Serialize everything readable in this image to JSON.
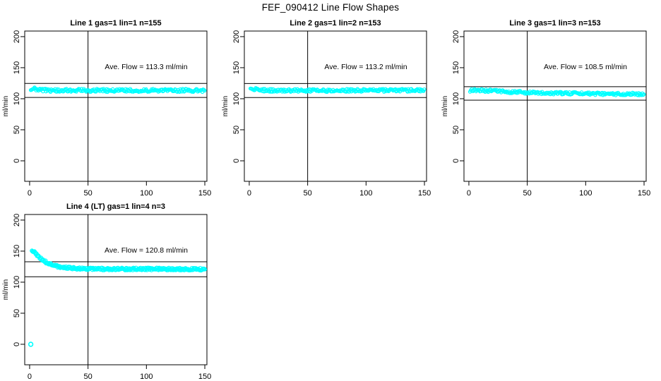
{
  "title": "FEF_090412  Line Flow Shapes",
  "colors": {
    "point": "#00FFFF",
    "axis": "#000000",
    "background": "#FFFFFF"
  },
  "chart_data": [
    {
      "type": "scatter",
      "title": "Line 1 gas=1 lin=1 n=155",
      "annotation": "Ave. Flow =  113.3  ml/min",
      "ave_flow": 113.3,
      "n": 155,
      "ylabel": "ml/min",
      "xlabel": "",
      "xlim": [
        -4.2,
        151.8
      ],
      "ylim": [
        -33,
        209
      ],
      "xticks": [
        0,
        50,
        100,
        150
      ],
      "yticks": [
        0,
        50,
        100,
        150,
        200
      ],
      "vline_x": 50,
      "hlines": [
        124.6,
        102.0
      ],
      "annotation_xy": [
        100,
        150
      ],
      "x_range": [
        1,
        150
      ],
      "x_step": 0.65,
      "band_halfwidth": 2.6,
      "point_radius": 2.1,
      "shape_points": [
        [
          1,
          116
        ],
        [
          2,
          117
        ],
        [
          3,
          116.5
        ],
        [
          5,
          115.5
        ],
        [
          8,
          114.5
        ],
        [
          12,
          113.8
        ],
        [
          20,
          113.4
        ],
        [
          40,
          113.3
        ],
        [
          80,
          113.4
        ],
        [
          150,
          113.4
        ]
      ],
      "outliers": []
    },
    {
      "type": "scatter",
      "title": "Line 2 gas=1 lin=2 n=153",
      "annotation": "Ave. Flow =  113.2  ml/min",
      "ave_flow": 113.2,
      "n": 153,
      "ylabel": "ml/min",
      "xlabel": "",
      "xlim": [
        -4.2,
        151.8
      ],
      "ylim": [
        -33,
        209
      ],
      "xticks": [
        0,
        50,
        100,
        150
      ],
      "yticks": [
        0,
        50,
        100,
        150,
        200
      ],
      "vline_x": 50,
      "hlines": [
        124.5,
        101.9
      ],
      "annotation_xy": [
        100,
        150
      ],
      "x_range": [
        1,
        150
      ],
      "x_step": 0.65,
      "band_halfwidth": 2.4,
      "point_radius": 2.1,
      "shape_points": [
        [
          1,
          116.5
        ],
        [
          2,
          117
        ],
        [
          4,
          115.8
        ],
        [
          7,
          114.5
        ],
        [
          12,
          113.6
        ],
        [
          20,
          113.2
        ],
        [
          40,
          113.2
        ],
        [
          80,
          113.4
        ],
        [
          150,
          113.5
        ]
      ],
      "outliers": []
    },
    {
      "type": "scatter",
      "title": "Line 3 gas=1 lin=3 n=153",
      "annotation": "Ave. Flow =  108.5  ml/min",
      "ave_flow": 108.5,
      "n": 153,
      "ylabel": "ml/min",
      "xlabel": "",
      "xlim": [
        -4.2,
        151.8
      ],
      "ylim": [
        -33,
        209
      ],
      "xticks": [
        0,
        50,
        100,
        150
      ],
      "yticks": [
        0,
        50,
        100,
        150,
        200
      ],
      "vline_x": 50,
      "hlines": [
        119.4,
        97.7
      ],
      "annotation_xy": [
        100,
        150
      ],
      "x_range": [
        1,
        150
      ],
      "x_step": 0.65,
      "band_halfwidth": 2.2,
      "point_radius": 2.1,
      "shape_points": [
        [
          1,
          112
        ],
        [
          2,
          113.5
        ],
        [
          4,
          114
        ],
        [
          8,
          114
        ],
        [
          15,
          113
        ],
        [
          30,
          111.5
        ],
        [
          50,
          110
        ],
        [
          80,
          108.8
        ],
        [
          110,
          108
        ],
        [
          150,
          107.5
        ]
      ],
      "outliers": []
    },
    {
      "type": "scatter",
      "title": "Line 4 (LT) gas=1 lin=4 n=3",
      "annotation": "Ave. Flow =  120.8  ml/min",
      "ave_flow": 120.8,
      "n": 3,
      "ylabel": "ml/min",
      "xlabel": "",
      "xlim": [
        -4.2,
        151.8
      ],
      "ylim": [
        -33,
        209
      ],
      "xticks": [
        0,
        50,
        100,
        150
      ],
      "yticks": [
        0,
        50,
        100,
        150,
        200
      ],
      "vline_x": 50,
      "hlines": [
        132.9,
        108.7
      ],
      "annotation_xy": [
        100,
        150
      ],
      "x_range": [
        2,
        150
      ],
      "x_step": 0.55,
      "band_halfwidth": 1.8,
      "point_radius": 2.5,
      "shape_points": [
        [
          2,
          152
        ],
        [
          3,
          150.5
        ],
        [
          4,
          148.5
        ],
        [
          5,
          146.5
        ],
        [
          7,
          142.5
        ],
        [
          9,
          139
        ],
        [
          11,
          136
        ],
        [
          13,
          133.5
        ],
        [
          15,
          131
        ],
        [
          18,
          128.5
        ],
        [
          21,
          126.8
        ],
        [
          25,
          125
        ],
        [
          30,
          123.5
        ],
        [
          36,
          122.5
        ],
        [
          45,
          121.8
        ],
        [
          60,
          121.3
        ],
        [
          80,
          121.2
        ],
        [
          110,
          121.2
        ],
        [
          150,
          120.8
        ]
      ],
      "outliers": [
        [
          1,
          0
        ]
      ]
    }
  ]
}
